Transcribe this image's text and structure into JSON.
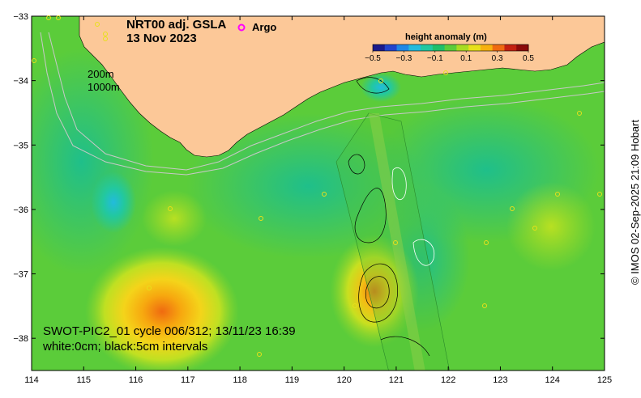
{
  "title": {
    "line1": "NRT00 adj. GSLA",
    "line2": "13 Nov 2023"
  },
  "legend": {
    "argo_label": "Argo",
    "argo_marker_color": "#ff00ff"
  },
  "colorbar": {
    "title": "height anomaly (m)",
    "ticks": [
      "−0.5",
      "−0.3",
      "−0.1",
      "0.1",
      "0.3",
      "0.5"
    ],
    "colors": [
      "#1a1a8c",
      "#2244cc",
      "#1e88e6",
      "#22bbdd",
      "#22c8a0",
      "#1fbf6a",
      "#5bcc3a",
      "#a8dc22",
      "#e8e01a",
      "#f7b10f",
      "#ef6a10",
      "#c42010",
      "#8b0a0a"
    ]
  },
  "contour_labels": {
    "shallow": "200m",
    "deep": "1000m"
  },
  "caption": {
    "line1": "SWOT-PIC2_01 cycle 006/312; 13/11/23 16:39",
    "line2": "white:0cm; black:5cm intervals"
  },
  "credit": "© IMOS 02-Sep-2025 21:09 Hobart",
  "axes": {
    "x_ticks": [
      "114",
      "115",
      "116",
      "117",
      "118",
      "119",
      "120",
      "121",
      "122",
      "123",
      "124",
      "125"
    ],
    "y_ticks": [
      "−33",
      "−34",
      "−35",
      "−36",
      "−37",
      "−38"
    ],
    "x_range": [
      114,
      125
    ],
    "y_range": [
      -38.5,
      -33
    ]
  },
  "colors": {
    "land": "#fcc898",
    "ocean_base": "#5bcc3a"
  }
}
